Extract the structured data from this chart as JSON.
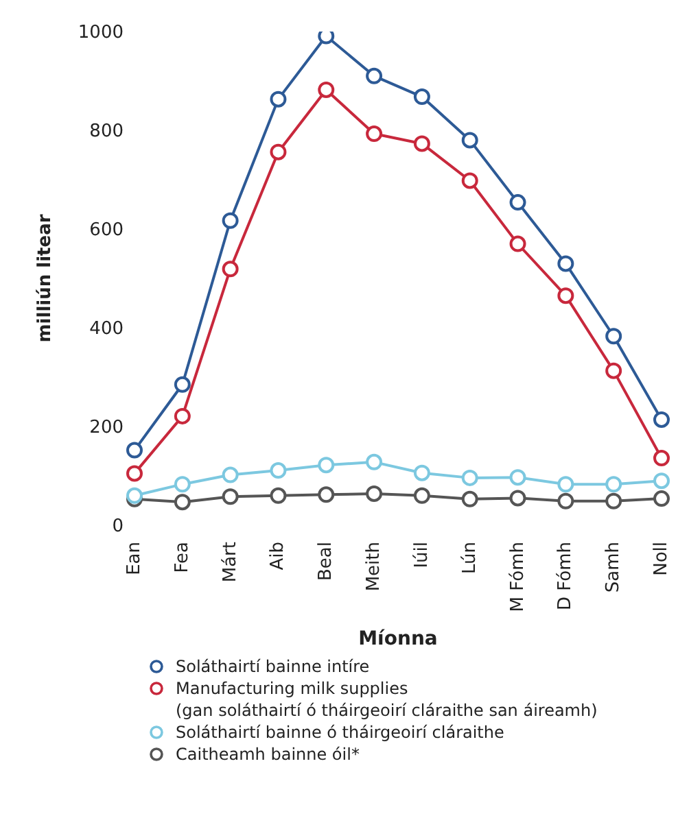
{
  "chart_data": {
    "type": "line",
    "xlabel": "Míonna",
    "ylabel": "milliún litear",
    "categories": [
      "Ean",
      "Fea",
      "Márt",
      "Aib",
      "Beal",
      "Meith",
      "Iúil",
      "Lún",
      "M Fómh",
      "D Fómh",
      "Samh",
      "Noll"
    ],
    "series": [
      {
        "name": "Soláthairtí bainne intíre",
        "color": "#2d5a96",
        "values": [
          152,
          285,
          617,
          863,
          991,
          910,
          868,
          780,
          654,
          530,
          383,
          214
        ]
      },
      {
        "name": "Manufacturing milk supplies\n(gan soláthairtí ó tháirgeoirí cláraithe san áireamh)",
        "color": "#c8283c",
        "values": [
          105,
          221,
          519,
          756,
          882,
          793,
          773,
          698,
          570,
          465,
          313,
          136
        ]
      },
      {
        "name": "Soláthairtí bainne ó tháirgeoirí cláraithe",
        "color": "#7cc8e0",
        "values": [
          60,
          83,
          102,
          111,
          122,
          128,
          106,
          96,
          97,
          83,
          83,
          90
        ]
      },
      {
        "name": "Caitheamh bainne óil*",
        "color": "#555555",
        "values": [
          53,
          47,
          58,
          60,
          62,
          64,
          60,
          53,
          55,
          49,
          49,
          54
        ]
      }
    ],
    "ylim": [
      0,
      1000
    ],
    "yticks": [
      0,
      200,
      400,
      600,
      800,
      1000
    ],
    "grid": false,
    "legend": "bottom",
    "marker": "circle",
    "line_style": "solid"
  }
}
